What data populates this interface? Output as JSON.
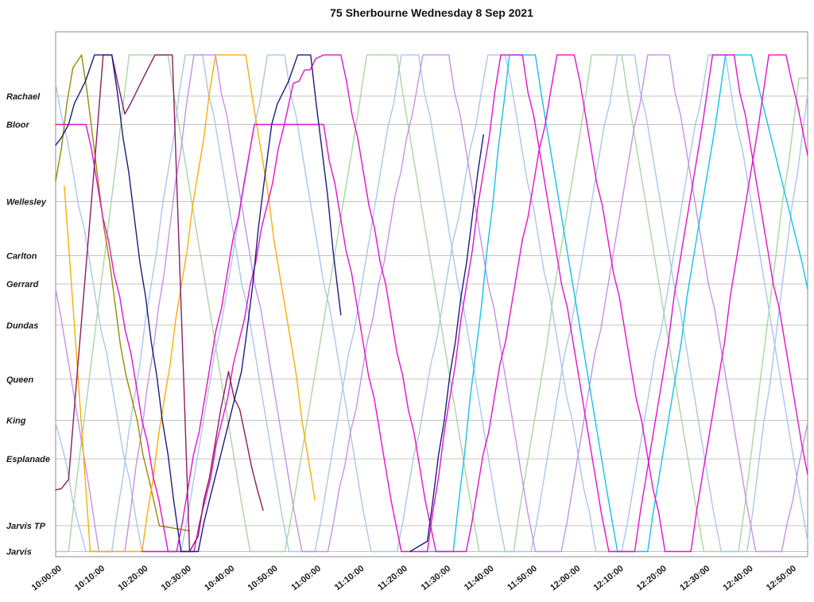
{
  "title": "75 Sherbourne Wednesday 8 Sep 2021",
  "chart_data": {
    "type": "line",
    "title": "75 Sherbourne Wednesday 8 Sep 2021",
    "description": "Time-distance (Marey) chart of transit vehicle runs along Sherbourne St; y axis is position along route (stations), x axis is time of day.",
    "legend": "none",
    "grid": "horizontal",
    "x_axis": {
      "start_minutes": 0,
      "end_minutes": 174,
      "tick_interval_minutes": 10,
      "tick_labels": [
        "10:00:00",
        "10:10:00",
        "10:20:00",
        "10:30:00",
        "10:40:00",
        "10:50:00",
        "11:00:00",
        "11:10:00",
        "11:20:00",
        "11:30:00",
        "11:40:00",
        "11:50:00",
        "12:00:00",
        "12:10:00",
        "12:20:00",
        "12:30:00",
        "12:40:00",
        "12:50:00"
      ]
    },
    "y_axis": {
      "range": [
        0,
        10.2
      ],
      "top_terminal_value": 9.75,
      "stations": [
        {
          "name": "Rachael",
          "value": 8.95
        },
        {
          "name": "Bloor",
          "value": 8.4
        },
        {
          "name": "Wellesley",
          "value": 6.9
        },
        {
          "name": "Carlton",
          "value": 5.85
        },
        {
          "name": "Gerrard",
          "value": 5.3
        },
        {
          "name": "Dundas",
          "value": 4.5
        },
        {
          "name": "Queen",
          "value": 3.45
        },
        {
          "name": "King",
          "value": 2.65
        },
        {
          "name": "Esplanade",
          "value": 1.9
        },
        {
          "name": "Jarvis TP",
          "value": 0.6
        },
        {
          "name": "Jarvis",
          "value": 0.1
        }
      ]
    },
    "series": [
      {
        "name": "run-palegreen",
        "color": "#abd5a2",
        "points": [
          [
            0,
            0.1
          ],
          [
            3,
            0.1
          ],
          [
            17,
            9.75
          ],
          [
            26,
            9.75
          ],
          [
            45,
            0.1
          ],
          [
            53,
            0.1
          ],
          [
            72,
            9.75
          ],
          [
            79,
            9.75
          ],
          [
            98,
            0.1
          ],
          [
            106,
            0.1
          ],
          [
            124,
            9.75
          ],
          [
            131,
            9.75
          ],
          [
            150,
            0.1
          ],
          [
            158,
            0.1
          ],
          [
            172,
            9.3
          ],
          [
            174,
            9.3
          ]
        ]
      },
      {
        "name": "run-paleblue-1",
        "color": "#a9c7e9",
        "points": [
          [
            0,
            9.2
          ],
          [
            4,
            7.5
          ],
          [
            20,
            0.1
          ],
          [
            29,
            0.1
          ],
          [
            49,
            9.75
          ],
          [
            53,
            9.75
          ],
          [
            73,
            0.1
          ],
          [
            79,
            0.1
          ],
          [
            100,
            9.75
          ],
          [
            104,
            9.75
          ],
          [
            125,
            0.1
          ],
          [
            131,
            0.1
          ],
          [
            151,
            9.75
          ],
          [
            155,
            9.75
          ],
          [
            174,
            0.3
          ]
        ]
      },
      {
        "name": "run-paleblue-2",
        "color": "#a9c7e9",
        "points": [
          [
            0,
            2.6
          ],
          [
            7,
            0.1
          ],
          [
            13,
            0.1
          ],
          [
            30,
            9.75
          ],
          [
            34,
            9.75
          ],
          [
            54,
            0.1
          ],
          [
            60,
            0.1
          ],
          [
            80,
            9.75
          ],
          [
            84,
            9.75
          ],
          [
            104,
            0.1
          ],
          [
            110,
            0.1
          ],
          [
            130,
            9.75
          ],
          [
            134,
            9.75
          ],
          [
            154,
            0.1
          ],
          [
            160,
            0.1
          ],
          [
            174,
            9.0
          ]
        ]
      },
      {
        "name": "run-orchid",
        "color": "#c792e0",
        "points": [
          [
            0,
            5.2
          ],
          [
            10,
            0.1
          ],
          [
            16,
            0.1
          ],
          [
            32,
            9.75
          ],
          [
            37,
            9.75
          ],
          [
            57,
            0.1
          ],
          [
            63,
            0.1
          ],
          [
            85,
            9.75
          ],
          [
            91,
            9.75
          ],
          [
            111,
            0.1
          ],
          [
            117,
            0.1
          ],
          [
            137,
            9.75
          ],
          [
            142,
            9.75
          ],
          [
            162,
            0.1
          ],
          [
            168,
            0.1
          ],
          [
            174,
            2.6
          ]
        ]
      },
      {
        "name": "run-olive",
        "color": "#998900",
        "points": [
          [
            0,
            7.3
          ],
          [
            4,
            9.5
          ],
          [
            6,
            9.75
          ],
          [
            15,
            4.1
          ],
          [
            24,
            0.6
          ],
          [
            31,
            0.5
          ]
        ]
      },
      {
        "name": "run-orange",
        "color": "#f9ae00",
        "points": [
          [
            2,
            7.2
          ],
          [
            8,
            0.1
          ],
          [
            20,
            0.1
          ],
          [
            37,
            9.75
          ],
          [
            44,
            9.75
          ],
          [
            60,
            1.1
          ]
        ]
      },
      {
        "name": "run-cyan",
        "color": "#12c3e6",
        "points": [
          [
            84,
            0.1
          ],
          [
            92,
            0.1
          ],
          [
            105,
            9.75
          ],
          [
            111,
            9.75
          ],
          [
            130,
            0.1
          ],
          [
            137,
            0.1
          ],
          [
            155,
            9.75
          ],
          [
            161,
            9.75
          ],
          [
            174,
            5.2
          ]
        ]
      },
      {
        "name": "run-magenta-1",
        "color": "#e212cc",
        "points": [
          [
            0,
            8.4
          ],
          [
            7,
            8.4
          ],
          [
            26,
            0.1
          ],
          [
            32,
            0.1
          ],
          [
            55,
            9.2
          ],
          [
            62,
            9.75
          ],
          [
            66,
            9.75
          ],
          [
            88,
            0.1
          ],
          [
            95,
            0.1
          ],
          [
            116,
            9.75
          ],
          [
            120,
            9.75
          ],
          [
            141,
            0.1
          ],
          [
            147,
            0.1
          ],
          [
            165,
            9.75
          ],
          [
            169,
            9.75
          ],
          [
            174,
            7.8
          ]
        ]
      },
      {
        "name": "run-magenta-2",
        "color": "#e212cc",
        "points": [
          [
            20,
            0.1
          ],
          [
            28,
            0.1
          ],
          [
            46,
            8.4
          ],
          [
            62,
            8.4
          ],
          [
            80,
            0.1
          ],
          [
            86,
            0.1
          ],
          [
            103,
            9.75
          ],
          [
            108,
            9.75
          ],
          [
            128,
            0.1
          ],
          [
            134,
            0.1
          ],
          [
            152,
            9.75
          ],
          [
            157,
            9.75
          ],
          [
            174,
            1.6
          ]
        ]
      },
      {
        "name": "run-maroon",
        "color": "#8b1c62",
        "points": [
          [
            0,
            1.3
          ],
          [
            3,
            1.5
          ],
          [
            11,
            9.75
          ],
          [
            13,
            9.75
          ],
          [
            16,
            8.6
          ],
          [
            23,
            9.75
          ],
          [
            27,
            9.75
          ],
          [
            31,
            0.1
          ],
          [
            33,
            0.4
          ],
          [
            40,
            3.6
          ],
          [
            44,
            2.3
          ],
          [
            48,
            0.9
          ]
        ]
      },
      {
        "name": "run-navy-1",
        "color": "#1b1b80",
        "points": [
          [
            0,
            8.0
          ],
          [
            3,
            8.4
          ],
          [
            9,
            9.75
          ],
          [
            13,
            9.75
          ],
          [
            29,
            0.1
          ],
          [
            33,
            0.1
          ],
          [
            43,
            3.6
          ],
          [
            50,
            8.4
          ],
          [
            56,
            9.75
          ],
          [
            59,
            9.75
          ],
          [
            66,
            4.7
          ]
        ]
      },
      {
        "name": "run-navy-2",
        "color": "#1b1b80",
        "points": [
          [
            82,
            0.1
          ],
          [
            86,
            0.3
          ],
          [
            99,
            8.2
          ]
        ]
      }
    ]
  }
}
